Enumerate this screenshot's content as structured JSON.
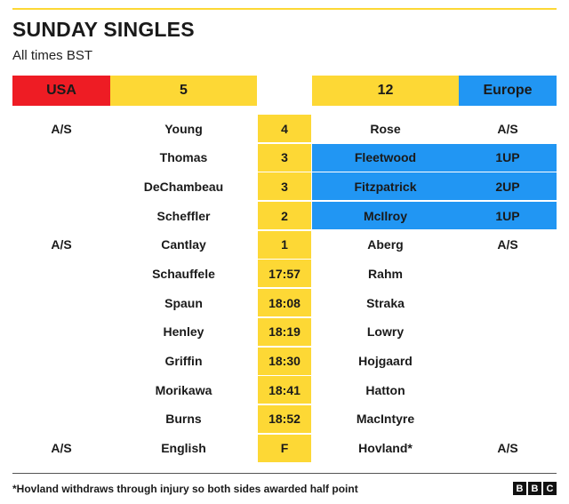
{
  "title": "SUNDAY SINGLES",
  "subtitle": "All times BST",
  "header": {
    "usa_label": "USA",
    "usa_score": "5",
    "europe_score": "12",
    "europe_label": "Europe"
  },
  "colors": {
    "usa": "#ee1c24",
    "score": "#fdd835",
    "europe": "#2196f3"
  },
  "matches": [
    {
      "usa_status": "A/S",
      "usa_player": "Young",
      "match": "4",
      "europe_player": "Rose",
      "europe_status": "A/S",
      "europe_leads": false
    },
    {
      "usa_status": "",
      "usa_player": "Thomas",
      "match": "3",
      "europe_player": "Fleetwood",
      "europe_status": "1UP",
      "europe_leads": true
    },
    {
      "usa_status": "",
      "usa_player": "DeChambeau",
      "match": "3",
      "europe_player": "Fitzpatrick",
      "europe_status": "2UP",
      "europe_leads": true
    },
    {
      "usa_status": "",
      "usa_player": "Scheffler",
      "match": "2",
      "europe_player": "McIlroy",
      "europe_status": "1UP",
      "europe_leads": true
    },
    {
      "usa_status": "A/S",
      "usa_player": "Cantlay",
      "match": "1",
      "europe_player": "Aberg",
      "europe_status": "A/S",
      "europe_leads": false
    },
    {
      "usa_status": "",
      "usa_player": "Schauffele",
      "match": "17:57",
      "europe_player": "Rahm",
      "europe_status": "",
      "europe_leads": false
    },
    {
      "usa_status": "",
      "usa_player": "Spaun",
      "match": "18:08",
      "europe_player": "Straka",
      "europe_status": "",
      "europe_leads": false
    },
    {
      "usa_status": "",
      "usa_player": "Henley",
      "match": "18:19",
      "europe_player": "Lowry",
      "europe_status": "",
      "europe_leads": false
    },
    {
      "usa_status": "",
      "usa_player": "Griffin",
      "match": "18:30",
      "europe_player": "Hojgaard",
      "europe_status": "",
      "europe_leads": false
    },
    {
      "usa_status": "",
      "usa_player": "Morikawa",
      "match": "18:41",
      "europe_player": "Hatton",
      "europe_status": "",
      "europe_leads": false
    },
    {
      "usa_status": "",
      "usa_player": "Burns",
      "match": "18:52",
      "europe_player": "MacIntyre",
      "europe_status": "",
      "europe_leads": false
    },
    {
      "usa_status": "A/S",
      "usa_player": "English",
      "match": "F",
      "europe_player": "Hovland*",
      "europe_status": "A/S",
      "europe_leads": false
    }
  ],
  "footnote": "*Hovland withdraws through injury so both sides awarded half point",
  "logo": [
    "B",
    "B",
    "C"
  ]
}
